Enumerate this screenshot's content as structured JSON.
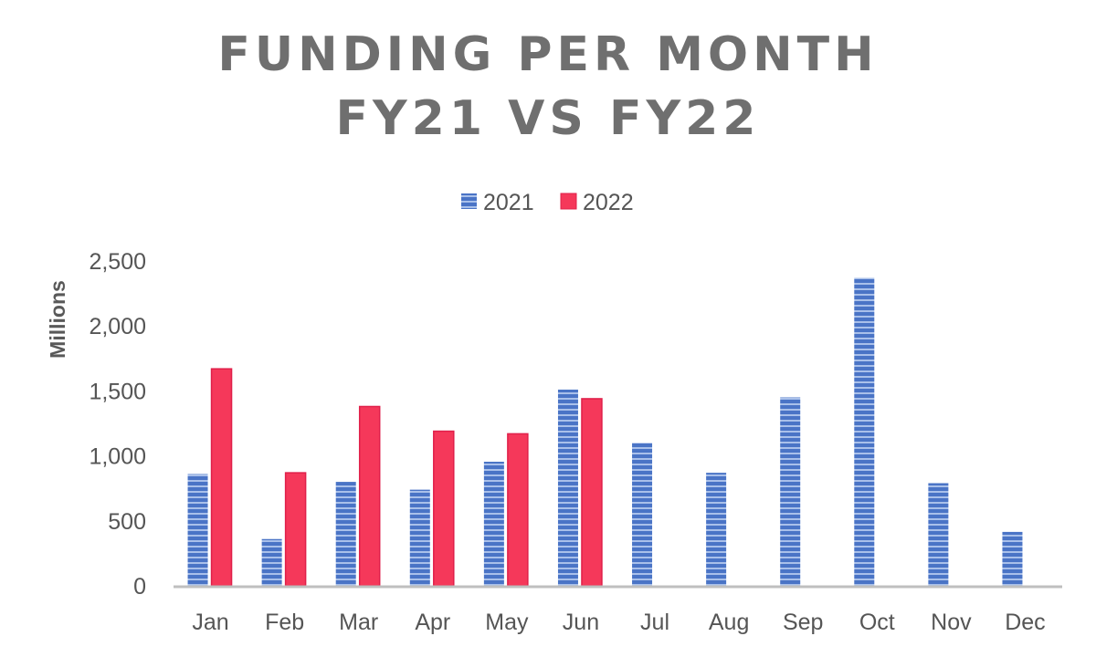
{
  "chart_data": {
    "type": "bar",
    "title": [
      "FUNDING PER MONTH",
      "FY21 VS FY22"
    ],
    "xlabel": "",
    "ylabel": "Millions",
    "ylim": [
      0,
      2500
    ],
    "yticks": [
      "0",
      "500",
      "1,000",
      "1,500",
      "2,000",
      "2,500"
    ],
    "ytick_values": [
      0,
      500,
      1000,
      1500,
      2000,
      2500
    ],
    "grid": false,
    "legend": "top",
    "categories": [
      "Jan",
      "Feb",
      "Mar",
      "Apr",
      "May",
      "Jun",
      "Jul",
      "Aug",
      "Sep",
      "Oct",
      "Nov",
      "Dec"
    ],
    "series": [
      {
        "name": "2021",
        "color": "#4472c4",
        "values": [
          860,
          360,
          800,
          740,
          955,
          1510,
          1100,
          870,
          1450,
          2370,
          790,
          415
        ]
      },
      {
        "name": "2022",
        "color": "#f5385a",
        "values": [
          1670,
          870,
          1380,
          1190,
          1170,
          1440,
          null,
          null,
          null,
          null,
          null,
          null
        ]
      }
    ]
  }
}
